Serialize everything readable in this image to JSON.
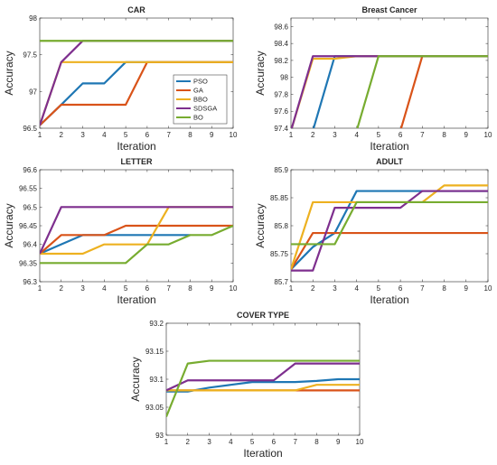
{
  "series_colors": [
    "#1f77b4",
    "#d95319",
    "#edb120",
    "#7e2f8e",
    "#77ac30"
  ],
  "legend_entries": [
    "PSO",
    "GA",
    "BBO",
    "SDSGA",
    "BO"
  ],
  "chart_data": [
    {
      "type": "line",
      "title": "CAR",
      "xlabel": "Iteration",
      "ylabel": "Accuracy",
      "xlim": [
        1,
        10
      ],
      "ylim": [
        96.5,
        98
      ],
      "xticks": [
        1,
        2,
        3,
        4,
        5,
        6,
        7,
        8,
        9,
        10
      ],
      "yticks": [
        96.5,
        97,
        97.5,
        98
      ],
      "ytick_labels": [
        "96.5",
        "97",
        "97.5",
        "98"
      ],
      "legend": "inside-right",
      "x": [
        1,
        2,
        3,
        4,
        5,
        6,
        7,
        8,
        9,
        10
      ],
      "series": [
        {
          "name": "PSO",
          "values": [
            96.54,
            96.82,
            97.11,
            97.11,
            97.4,
            97.4,
            97.4,
            97.4,
            97.4,
            97.4
          ]
        },
        {
          "name": "GA",
          "values": [
            96.54,
            96.82,
            96.82,
            96.82,
            96.82,
            97.4,
            97.4,
            97.4,
            97.4,
            97.4
          ]
        },
        {
          "name": "BBO",
          "values": [
            96.54,
            97.4,
            97.4,
            97.4,
            97.4,
            97.4,
            97.4,
            97.4,
            97.4,
            97.4
          ]
        },
        {
          "name": "SDSGA",
          "values": [
            96.54,
            97.4,
            97.69,
            97.69,
            97.69,
            97.69,
            97.69,
            97.69,
            97.69,
            97.69
          ]
        },
        {
          "name": "BO",
          "values": [
            97.69,
            97.69,
            97.69,
            97.69,
            97.69,
            97.69,
            97.69,
            97.69,
            97.69,
            97.69
          ]
        }
      ]
    },
    {
      "type": "line",
      "title": "Breast Cancer",
      "xlabel": "Iteration",
      "ylabel": "Accuracy",
      "xlim": [
        1,
        10
      ],
      "ylim": [
        97.4,
        98.7
      ],
      "xticks": [
        1,
        2,
        3,
        4,
        5,
        6,
        7,
        8,
        9,
        10
      ],
      "yticks": [
        97.4,
        97.6,
        97.8,
        98,
        98.2,
        98.4,
        98.6
      ],
      "ytick_labels": [
        "97.4",
        "97.6",
        "97.8",
        "98",
        "98.2",
        "98.4",
        "98.6"
      ],
      "x": [
        1,
        2,
        3,
        4,
        5,
        6,
        7,
        8,
        9,
        10
      ],
      "series": [
        {
          "name": "PSO",
          "values": [
            97.37,
            97.37,
            98.25,
            98.25,
            98.25,
            98.25,
            98.25,
            98.25,
            98.25,
            98.25
          ]
        },
        {
          "name": "GA",
          "values": [
            97.37,
            97.37,
            97.37,
            97.37,
            97.37,
            97.37,
            98.25,
            98.25,
            98.25,
            98.25
          ]
        },
        {
          "name": "BBO",
          "values": [
            97.37,
            98.22,
            98.22,
            98.25,
            98.25,
            98.25,
            98.25,
            98.25,
            98.25,
            98.25
          ]
        },
        {
          "name": "SDSGA",
          "values": [
            97.37,
            98.25,
            98.25,
            98.25,
            98.25,
            98.25,
            98.25,
            98.25,
            98.25,
            98.25
          ]
        },
        {
          "name": "BO",
          "values": [
            97.37,
            97.37,
            97.37,
            97.37,
            98.25,
            98.25,
            98.25,
            98.25,
            98.25,
            98.25
          ]
        }
      ]
    },
    {
      "type": "line",
      "title": "LETTER",
      "xlabel": "Iteration",
      "ylabel": "Accuracy",
      "xlim": [
        1,
        10
      ],
      "ylim": [
        96.3,
        96.6
      ],
      "xticks": [
        1,
        2,
        3,
        4,
        5,
        6,
        7,
        8,
        9,
        10
      ],
      "yticks": [
        96.3,
        96.35,
        96.4,
        96.45,
        96.5,
        96.55,
        96.6
      ],
      "ytick_labels": [
        "96.3",
        "96.35",
        "96.4",
        "96.45",
        "96.5",
        "96.55",
        "96.6"
      ],
      "x": [
        1,
        2,
        3,
        4,
        5,
        6,
        7,
        8,
        9,
        10
      ],
      "series": [
        {
          "name": "PSO",
          "values": [
            96.375,
            96.4,
            96.425,
            96.425,
            96.425,
            96.425,
            96.425,
            96.425,
            null,
            null
          ]
        },
        {
          "name": "GA",
          "values": [
            96.375,
            96.425,
            96.425,
            96.425,
            96.45,
            96.45,
            96.45,
            96.45,
            96.45,
            96.45
          ]
        },
        {
          "name": "BBO",
          "values": [
            96.375,
            96.375,
            96.375,
            96.4,
            96.4,
            96.4,
            96.5,
            96.5,
            96.5,
            96.5
          ]
        },
        {
          "name": "SDSGA",
          "values": [
            96.375,
            96.5,
            96.5,
            96.5,
            96.5,
            96.5,
            96.5,
            96.5,
            96.5,
            96.5
          ]
        },
        {
          "name": "BO",
          "values": [
            96.35,
            96.35,
            96.35,
            96.35,
            96.35,
            96.4,
            96.4,
            96.425,
            96.425,
            96.45
          ]
        }
      ]
    },
    {
      "type": "line",
      "title": "ADULT",
      "xlabel": "Iteration",
      "ylabel": "Accuracy",
      "xlim": [
        1,
        10
      ],
      "ylim": [
        85.7,
        85.9
      ],
      "xticks": [
        1,
        2,
        3,
        4,
        5,
        6,
        7,
        8,
        9,
        10
      ],
      "yticks": [
        85.7,
        85.75,
        85.8,
        85.85,
        85.9
      ],
      "ytick_labels": [
        "85.7",
        "85.75",
        "85.8",
        "85.85",
        "85.9"
      ],
      "x": [
        1,
        2,
        3,
        4,
        5,
        6,
        7,
        8,
        9,
        10
      ],
      "series": [
        {
          "name": "PSO",
          "values": [
            85.722,
            85.762,
            85.787,
            85.862,
            85.862,
            85.862,
            85.862,
            85.862,
            85.862,
            85.862
          ]
        },
        {
          "name": "GA",
          "values": [
            85.722,
            85.787,
            85.787,
            85.787,
            85.787,
            85.787,
            85.787,
            85.787,
            85.787,
            85.787
          ]
        },
        {
          "name": "BBO",
          "values": [
            85.722,
            85.842,
            85.842,
            85.842,
            85.842,
            85.842,
            85.842,
            85.872,
            85.872,
            85.872
          ]
        },
        {
          "name": "SDSGA",
          "values": [
            85.72,
            85.72,
            85.832,
            85.832,
            85.832,
            85.832,
            85.862,
            85.862,
            85.862,
            85.862
          ]
        },
        {
          "name": "BO",
          "values": [
            85.767,
            85.767,
            85.767,
            85.842,
            85.842,
            85.842,
            85.842,
            85.842,
            85.842,
            85.842
          ]
        }
      ]
    },
    {
      "type": "line",
      "title": "COVER TYPE",
      "xlabel": "Iteration",
      "ylabel": "Accuracy",
      "xlim": [
        1,
        10
      ],
      "ylim": [
        93,
        93.2
      ],
      "xticks": [
        1,
        2,
        3,
        4,
        5,
        6,
        7,
        8,
        9,
        10
      ],
      "yticks": [
        93,
        93.05,
        93.1,
        93.15,
        93.2
      ],
      "ytick_labels": [
        "93",
        "93.05",
        "93.1",
        "93.15",
        "93.2"
      ],
      "x": [
        1,
        2,
        3,
        4,
        5,
        6,
        7,
        8,
        9,
        10
      ],
      "series": [
        {
          "name": "PSO",
          "values": [
            93.078,
            93.078,
            93.085,
            93.09,
            93.095,
            93.095,
            93.095,
            93.097,
            93.1,
            93.1
          ]
        },
        {
          "name": "GA",
          "values": [
            93.08,
            93.08,
            93.08,
            93.08,
            93.08,
            93.08,
            93.08,
            93.08,
            93.08,
            93.08
          ]
        },
        {
          "name": "BBO",
          "values": [
            93.08,
            93.08,
            93.08,
            93.08,
            93.08,
            93.08,
            93.08,
            93.09,
            93.09,
            93.09
          ]
        },
        {
          "name": "SDSGA",
          "values": [
            93.08,
            93.098,
            93.098,
            93.098,
            93.098,
            93.098,
            93.128,
            93.128,
            93.128,
            93.128
          ]
        },
        {
          "name": "BO",
          "values": [
            93.033,
            93.128,
            93.133,
            93.133,
            93.133,
            93.133,
            93.133,
            93.133,
            93.133,
            93.133
          ]
        }
      ]
    }
  ]
}
